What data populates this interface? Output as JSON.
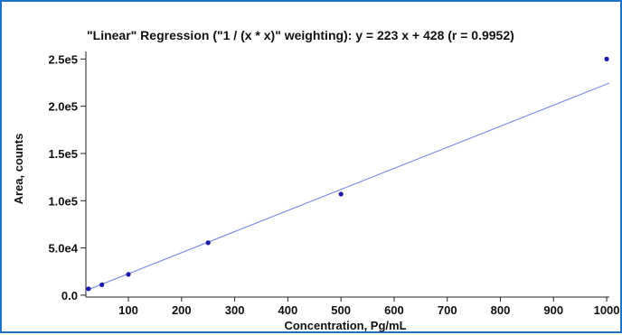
{
  "chart_data": {
    "type": "scatter",
    "title": "\"Linear\" Regression (\"1  / (x * x)\" weighting): y = 223 x + 428 (r = 0.9952)",
    "xlabel": "Concentration, Pg/mL",
    "ylabel": "Area, counts",
    "xlim": [
      20,
      1005
    ],
    "ylim": [
      -2000,
      258000
    ],
    "x_ticks": [
      100,
      200,
      300,
      400,
      500,
      600,
      700,
      800,
      900,
      1000
    ],
    "x_tick_labels": [
      "100",
      "200",
      "300",
      "400",
      "500",
      "600",
      "700",
      "800",
      "900",
      "1000"
    ],
    "y_ticks": [
      0,
      50000,
      100000,
      150000,
      200000,
      250000
    ],
    "y_tick_labels": [
      "0.0",
      "5.0e4",
      "1.0e5",
      "1.5e5",
      "2.0e5",
      "2.5e5"
    ],
    "grid": false,
    "series": [
      {
        "x": [
          25,
          50,
          100,
          250,
          500,
          1000
        ],
        "y": [
          6800,
          11000,
          22000,
          55500,
          107000,
          250000
        ]
      }
    ],
    "fit": {
      "slope": 223,
      "intercept": 428,
      "r": 0.9952
    },
    "colors": {
      "points": "#1a1aa6",
      "fit_line": "#7f8fe6",
      "frame": "#1f73c7"
    }
  }
}
